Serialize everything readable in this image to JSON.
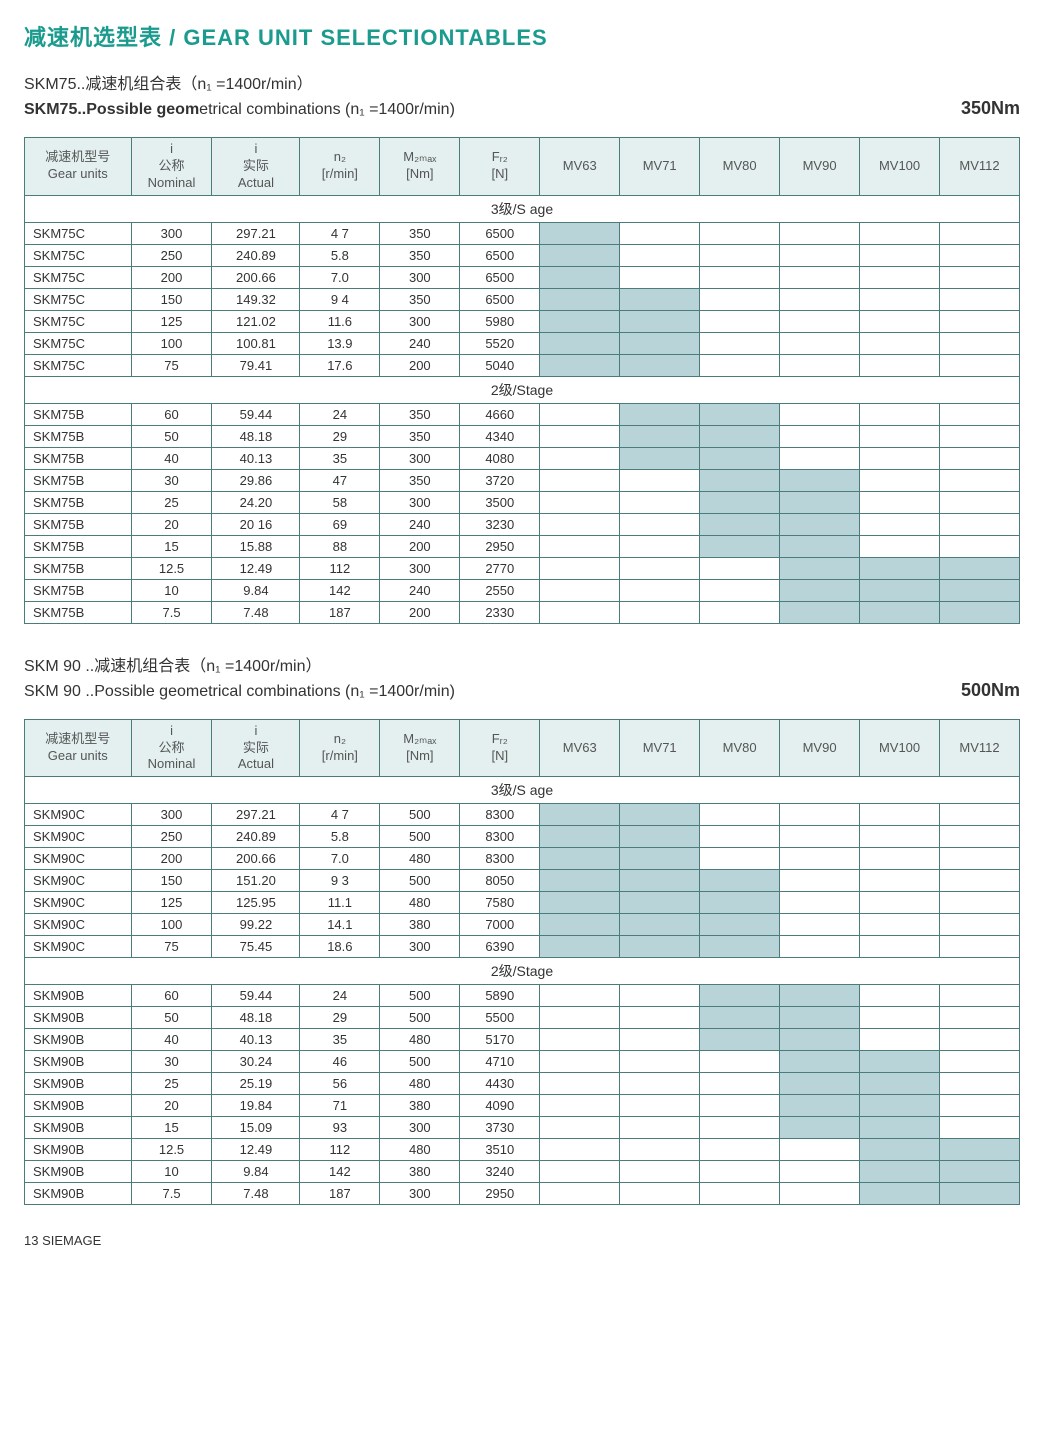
{
  "page_title": "减速机选型表 / GEAR UNIT SELECTIONTABLES",
  "footer": "13 SIEMAGE",
  "colors": {
    "accent": "#1a9b8e",
    "header_bg": "#e3f0ef",
    "border": "#4a7d7a",
    "shaded_cell": "#b9d4d8"
  },
  "columns": {
    "unit_cn": "减速机型号",
    "unit_en": "Gear units",
    "i_label": "i",
    "nominal_cn": "公称",
    "nominal_en": "Nominal",
    "actual_cn": "实际",
    "actual_en": "Actual",
    "n2": "n₂",
    "n2_unit": "[r/min]",
    "m2": "M₂ₘₐₓ",
    "m2_unit": "[Nm]",
    "fr2": "Fᵣ₂",
    "fr2_unit": "[N]",
    "mv": [
      "MV63",
      "MV71",
      "MV80",
      "MV90",
      "MV100",
      "MV112"
    ]
  },
  "blocks": [
    {
      "heading_cn": "SKM75..减速机组合表（n₁ =1400r/min）",
      "heading_en_bold": "SKM75..Possible geom",
      "heading_en_rest": "etrical combinations  (n₁ =1400r/min)",
      "torque": "350Nm",
      "stage3_label": "3级/S age",
      "stage2_label": "2级/Stage",
      "stage3_rows": [
        {
          "unit": "SKM75C",
          "nom": "300",
          "act": "297.21",
          "n2": "4 7",
          "m2": "350",
          "fr2": "6500",
          "mv": [
            1,
            0,
            0,
            0,
            0,
            0
          ]
        },
        {
          "unit": "SKM75C",
          "nom": "250",
          "act": "240.89",
          "n2": "5.8",
          "m2": "350",
          "fr2": "6500",
          "mv": [
            1,
            0,
            0,
            0,
            0,
            0
          ]
        },
        {
          "unit": "SKM75C",
          "nom": "200",
          "act": "200.66",
          "n2": "7.0",
          "m2": "300",
          "fr2": "6500",
          "mv": [
            1,
            0,
            0,
            0,
            0,
            0
          ]
        },
        {
          "unit": "SKM75C",
          "nom": "150",
          "act": "149.32",
          "n2": "9 4",
          "m2": "350",
          "fr2": "6500",
          "mv": [
            1,
            1,
            0,
            0,
            0,
            0
          ]
        },
        {
          "unit": "SKM75C",
          "nom": "125",
          "act": "121.02",
          "n2": "11.6",
          "m2": "300",
          "fr2": "5980",
          "mv": [
            1,
            1,
            0,
            0,
            0,
            0
          ]
        },
        {
          "unit": "SKM75C",
          "nom": "100",
          "act": "100.81",
          "n2": "13.9",
          "m2": "240",
          "fr2": "5520",
          "mv": [
            1,
            1,
            0,
            0,
            0,
            0
          ]
        },
        {
          "unit": "SKM75C",
          "nom": "75",
          "act": "79.41",
          "n2": "17.6",
          "m2": "200",
          "fr2": "5040",
          "mv": [
            1,
            1,
            0,
            0,
            0,
            0
          ]
        }
      ],
      "stage2_rows": [
        {
          "unit": "SKM75B",
          "nom": "60",
          "act": "59.44",
          "n2": "24",
          "m2": "350",
          "fr2": "4660",
          "mv": [
            0,
            1,
            1,
            0,
            0,
            0
          ]
        },
        {
          "unit": "SKM75B",
          "nom": "50",
          "act": "48.18",
          "n2": "29",
          "m2": "350",
          "fr2": "4340",
          "mv": [
            0,
            1,
            1,
            0,
            0,
            0
          ]
        },
        {
          "unit": "SKM75B",
          "nom": "40",
          "act": "40.13",
          "n2": "35",
          "m2": "300",
          "fr2": "4080",
          "mv": [
            0,
            1,
            1,
            0,
            0,
            0
          ]
        },
        {
          "unit": "SKM75B",
          "nom": "30",
          "act": "29.86",
          "n2": "47",
          "m2": "350",
          "fr2": "3720",
          "mv": [
            0,
            0,
            1,
            1,
            0,
            0
          ]
        },
        {
          "unit": "SKM75B",
          "nom": "25",
          "act": "24.20",
          "n2": "58",
          "m2": "300",
          "fr2": "3500",
          "mv": [
            0,
            0,
            1,
            1,
            0,
            0
          ]
        },
        {
          "unit": "SKM75B",
          "nom": "20",
          "act": "20 16",
          "n2": "69",
          "m2": "240",
          "fr2": "3230",
          "mv": [
            0,
            0,
            1,
            1,
            0,
            0
          ]
        },
        {
          "unit": "SKM75B",
          "nom": "15",
          "act": "15.88",
          "n2": "88",
          "m2": "200",
          "fr2": "2950",
          "mv": [
            0,
            0,
            1,
            1,
            0,
            0
          ]
        },
        {
          "unit": "SKM75B",
          "nom": "12.5",
          "act": "12.49",
          "n2": "112",
          "m2": "300",
          "fr2": "2770",
          "mv": [
            0,
            0,
            0,
            1,
            1,
            1
          ]
        },
        {
          "unit": "SKM75B",
          "nom": "10",
          "act": "9.84",
          "n2": "142",
          "m2": "240",
          "fr2": "2550",
          "mv": [
            0,
            0,
            0,
            1,
            1,
            1
          ]
        },
        {
          "unit": "SKM75B",
          "nom": "7.5",
          "act": "7.48",
          "n2": "187",
          "m2": "200",
          "fr2": "2330",
          "mv": [
            0,
            0,
            0,
            1,
            1,
            1
          ]
        }
      ]
    },
    {
      "heading_cn": "SKM 90 ..减速机组合表（n₁ =1400r/min）",
      "heading_en_bold": "",
      "heading_en_rest": "SKM 90 ..Possible geometrical combinations (n₁ =1400r/min)",
      "torque": "500Nm",
      "stage3_label": "3级/S age",
      "stage2_label": "2级/Stage",
      "stage3_rows": [
        {
          "unit": "SKM90C",
          "nom": "300",
          "act": "297.21",
          "n2": "4 7",
          "m2": "500",
          "fr2": "8300",
          "mv": [
            1,
            1,
            0,
            0,
            0,
            0
          ]
        },
        {
          "unit": "SKM90C",
          "nom": "250",
          "act": "240.89",
          "n2": "5.8",
          "m2": "500",
          "fr2": "8300",
          "mv": [
            1,
            1,
            0,
            0,
            0,
            0
          ]
        },
        {
          "unit": "SKM90C",
          "nom": "200",
          "act": "200.66",
          "n2": "7.0",
          "m2": "480",
          "fr2": "8300",
          "mv": [
            1,
            1,
            0,
            0,
            0,
            0
          ]
        },
        {
          "unit": "SKM90C",
          "nom": "150",
          "act": "151.20",
          "n2": "9 3",
          "m2": "500",
          "fr2": "8050",
          "mv": [
            1,
            1,
            1,
            0,
            0,
            0
          ]
        },
        {
          "unit": "SKM90C",
          "nom": "125",
          "act": "125.95",
          "n2": "11.1",
          "m2": "480",
          "fr2": "7580",
          "mv": [
            1,
            1,
            1,
            0,
            0,
            0
          ]
        },
        {
          "unit": "SKM90C",
          "nom": "100",
          "act": "99.22",
          "n2": "14.1",
          "m2": "380",
          "fr2": "7000",
          "mv": [
            1,
            1,
            1,
            0,
            0,
            0
          ]
        },
        {
          "unit": "SKM90C",
          "nom": "75",
          "act": "75.45",
          "n2": "18.6",
          "m2": "300",
          "fr2": "6390",
          "mv": [
            1,
            1,
            1,
            0,
            0,
            0
          ]
        }
      ],
      "stage2_rows": [
        {
          "unit": "SKM90B",
          "nom": "60",
          "act": "59.44",
          "n2": "24",
          "m2": "500",
          "fr2": "5890",
          "mv": [
            0,
            0,
            1,
            1,
            0,
            0
          ]
        },
        {
          "unit": "SKM90B",
          "nom": "50",
          "act": "48.18",
          "n2": "29",
          "m2": "500",
          "fr2": "5500",
          "mv": [
            0,
            0,
            1,
            1,
            0,
            0
          ]
        },
        {
          "unit": "SKM90B",
          "nom": "40",
          "act": "40.13",
          "n2": "35",
          "m2": "480",
          "fr2": "5170",
          "mv": [
            0,
            0,
            1,
            1,
            0,
            0
          ]
        },
        {
          "unit": "SKM90B",
          "nom": "30",
          "act": "30.24",
          "n2": "46",
          "m2": "500",
          "fr2": "4710",
          "mv": [
            0,
            0,
            0,
            1,
            1,
            0
          ]
        },
        {
          "unit": "SKM90B",
          "nom": "25",
          "act": "25.19",
          "n2": "56",
          "m2": "480",
          "fr2": "4430",
          "mv": [
            0,
            0,
            0,
            1,
            1,
            0
          ]
        },
        {
          "unit": "SKM90B",
          "nom": "20",
          "act": "19.84",
          "n2": "71",
          "m2": "380",
          "fr2": "4090",
          "mv": [
            0,
            0,
            0,
            1,
            1,
            0
          ]
        },
        {
          "unit": "SKM90B",
          "nom": "15",
          "act": "15.09",
          "n2": "93",
          "m2": "300",
          "fr2": "3730",
          "mv": [
            0,
            0,
            0,
            1,
            1,
            0
          ]
        },
        {
          "unit": "SKM90B",
          "nom": "12.5",
          "act": "12.49",
          "n2": "112",
          "m2": "480",
          "fr2": "3510",
          "mv": [
            0,
            0,
            0,
            0,
            1,
            1
          ]
        },
        {
          "unit": "SKM90B",
          "nom": "10",
          "act": "9.84",
          "n2": "142",
          "m2": "380",
          "fr2": "3240",
          "mv": [
            0,
            0,
            0,
            0,
            1,
            1
          ]
        },
        {
          "unit": "SKM90B",
          "nom": "7.5",
          "act": "7.48",
          "n2": "187",
          "m2": "300",
          "fr2": "2950",
          "mv": [
            0,
            0,
            0,
            0,
            1,
            1
          ]
        }
      ]
    }
  ]
}
